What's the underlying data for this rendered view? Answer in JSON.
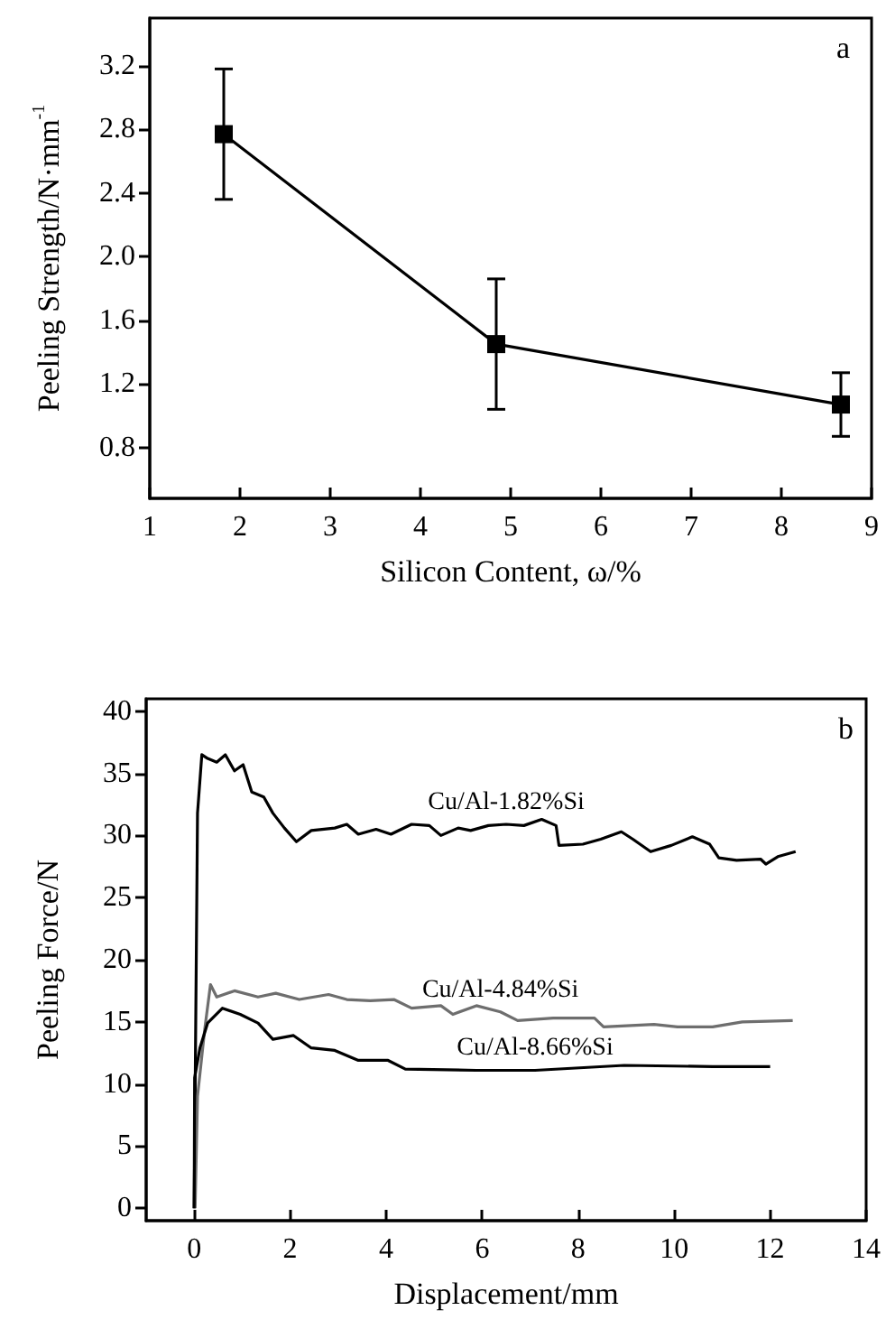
{
  "chart_data": [
    {
      "type": "line",
      "xlabel": "Silicon Content, ω/%",
      "ylabel": "Peeling Strength/N·mm$^{-1}$",
      "annotations": [
        "a"
      ],
      "x": [
        1.82,
        4.84,
        8.66
      ],
      "series": [
        {
          "color": "#000000",
          "values": [
            2.77,
            1.45,
            1.07
          ],
          "errors": [
            0.41,
            0.41,
            0.2
          ]
        }
      ],
      "xlim": [
        1,
        9
      ],
      "xticks": [
        1,
        2,
        3,
        4,
        5,
        6,
        7,
        8,
        9
      ],
      "ylim": [
        0.48,
        3.5
      ],
      "yticks": [
        0.8,
        1.2,
        1.6,
        {
          "value": 2,
          "label": "2.0"
        },
        2.4,
        2.8,
        3.2
      ],
      "marker": "square",
      "line_style": "solid",
      "grid": false,
      "legend": false
    },
    {
      "type": "line",
      "xlabel": "Displacement/mm",
      "ylabel": "Peeling Force/N",
      "annotations": [
        "b"
      ],
      "series": [
        {
          "name": "Cu/Al-1.82%Si",
          "color": "#000000",
          "x": [
            0,
            0.07,
            0.16,
            0.28,
            0.47,
            0.65,
            0.84,
            1.02,
            1.2,
            1.45,
            1.64,
            1.88,
            2.13,
            2.44,
            2.93,
            3.18,
            3.42,
            3.79,
            4.1,
            4.53,
            4.9,
            5.14,
            5.5,
            5.76,
            6.13,
            6.5,
            6.87,
            7.24,
            7.54,
            7.6,
            8.1,
            8.47,
            8.9,
            9.14,
            9.51,
            9.94,
            10.38,
            10.74,
            10.93,
            11.3,
            11.8,
            11.91,
            12.16,
            12.53
          ],
          "values": [
            0,
            31.8,
            36.5,
            36.2,
            35.9,
            36.5,
            35.2,
            35.7,
            33.5,
            33.1,
            31.8,
            30.6,
            29.5,
            30.4,
            30.6,
            30.9,
            30.1,
            30.5,
            30.1,
            30.9,
            30.8,
            30.0,
            30.6,
            30.4,
            30.8,
            30.9,
            30.8,
            31.3,
            30.8,
            29.2,
            29.3,
            29.7,
            30.3,
            29.7,
            28.7,
            29.2,
            29.9,
            29.3,
            28.2,
            28.0,
            28.1,
            27.7,
            28.3,
            28.7
          ]
        },
        {
          "name": "Cu/Al-4.84%Si",
          "color": "#6e6e6e",
          "x": [
            0.02,
            0.07,
            0.22,
            0.34,
            0.47,
            0.84,
            1.33,
            1.7,
            2.19,
            2.8,
            3.18,
            3.67,
            4.16,
            4.53,
            5.14,
            5.39,
            5.88,
            6.38,
            6.74,
            7.48,
            8.34,
            8.53,
            9.58,
            10.07,
            10.8,
            11.42,
            12.47
          ],
          "values": [
            0,
            9.0,
            14.4,
            18.0,
            17.0,
            17.5,
            17.0,
            17.3,
            16.8,
            17.2,
            16.8,
            16.7,
            16.8,
            16.1,
            16.3,
            15.6,
            16.3,
            15.8,
            15.1,
            15.3,
            15.3,
            14.6,
            14.8,
            14.6,
            14.6,
            15.0,
            15.1
          ]
        },
        {
          "name": "Cu/Al-8.66%Si",
          "color": "#000000",
          "x": [
            0,
            0.01,
            0.12,
            0.28,
            0.59,
            0.96,
            1.33,
            1.64,
            2.07,
            2.44,
            2.93,
            3.42,
            4.04,
            4.4,
            5.88,
            7.1,
            8.96,
            10.8,
            12.0
          ],
          "values": [
            0,
            10.5,
            12.9,
            14.9,
            16.1,
            15.6,
            14.9,
            13.6,
            13.9,
            12.9,
            12.7,
            11.9,
            11.9,
            11.2,
            11.1,
            11.1,
            11.5,
            11.4,
            11.4
          ]
        }
      ],
      "xlim": [
        -1,
        14
      ],
      "xticks": [
        0,
        2,
        4,
        6,
        8,
        10,
        12,
        14
      ],
      "ylim": [
        -1,
        41
      ],
      "yticks": [
        0,
        5,
        10,
        15,
        20,
        25,
        30,
        35,
        40
      ],
      "marker": "none",
      "line_style": "solid",
      "grid": false,
      "legend": false
    }
  ]
}
